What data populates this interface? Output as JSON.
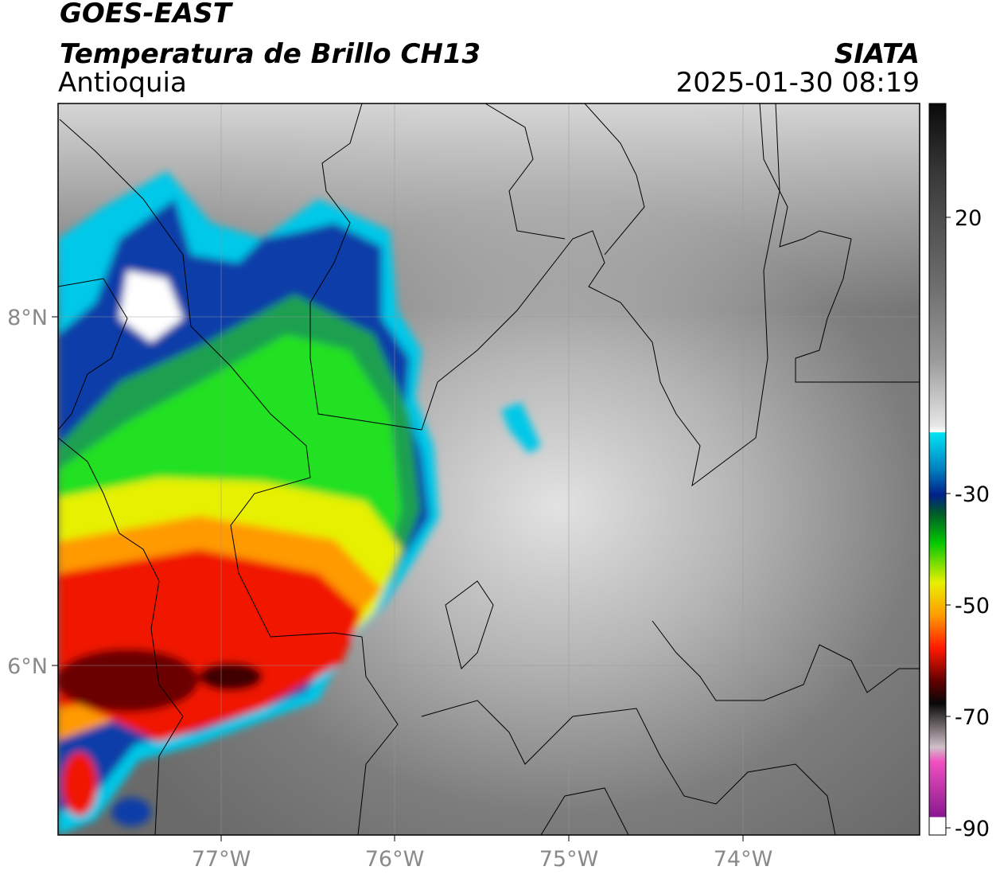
{
  "header": {
    "title": "GOES-EAST",
    "subtitle": "Temperatura de Brillo CH13",
    "region": "Antioquia",
    "source": "SIATA",
    "datetime": "2025-01-30 08:19"
  },
  "map": {
    "lat_labels": [
      "8°N",
      "6°N"
    ],
    "lon_labels": [
      "77°W",
      "76°W",
      "75°W",
      "74°W"
    ]
  },
  "colorbar": {
    "labels": [
      "20",
      "-30",
      "-50",
      "-70",
      "-90"
    ]
  }
}
